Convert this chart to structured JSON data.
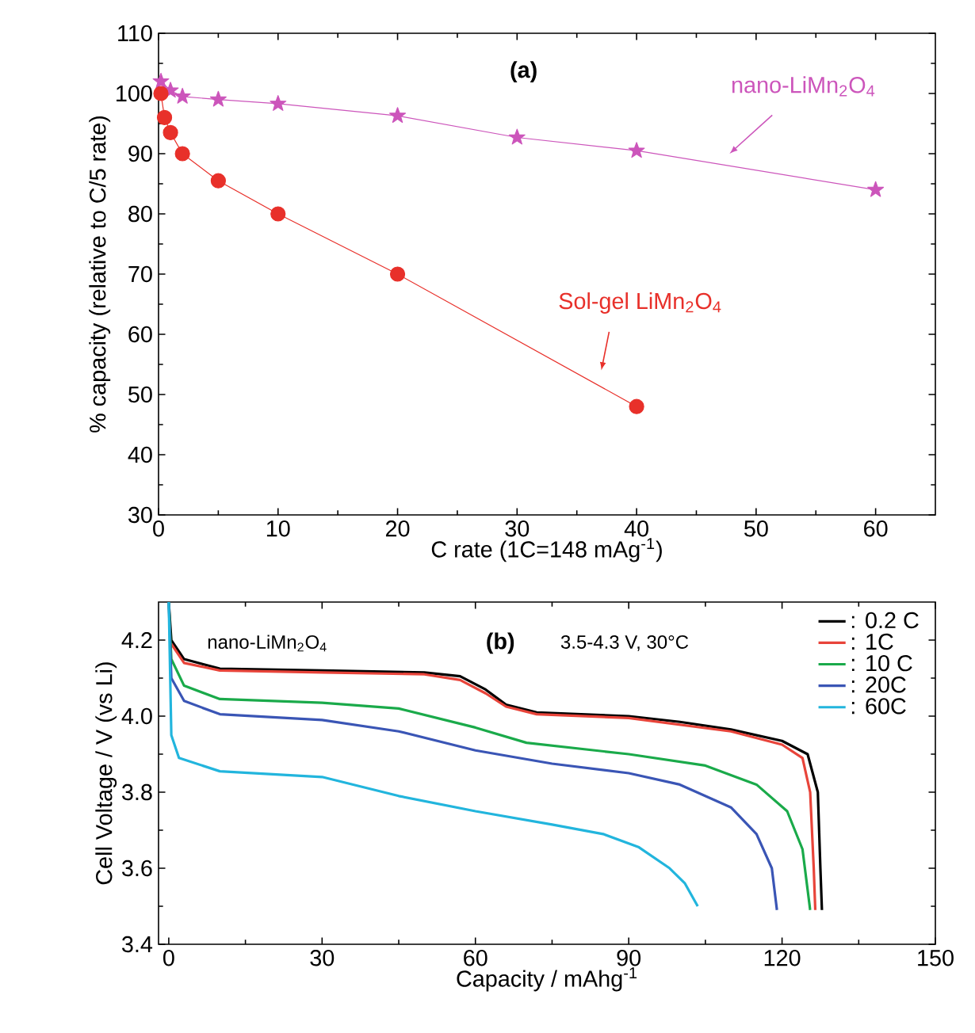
{
  "chart_data": [
    {
      "type": "line",
      "xlabel": "C rate (1C=148 mAg$^{-1}$)",
      "ylabel": "% capacity (relative to C/5 rate)",
      "annotations": [
        "(a)"
      ],
      "xlim": [
        0,
        65
      ],
      "ylim": [
        30,
        110
      ],
      "xticks": [
        0,
        10,
        20,
        30,
        40,
        50,
        60
      ],
      "yticks": [
        30,
        40,
        50,
        60,
        70,
        80,
        90,
        100,
        110
      ],
      "grid": false,
      "series": [
        {
          "name": "nano-LiMn$_{2}$O$_{4}$",
          "color": "#cc55bb",
          "marker": "star",
          "x": [
            0.2,
            1,
            2,
            5,
            10,
            20,
            30,
            40,
            60
          ],
          "values": [
            102,
            100.5,
            99.5,
            99,
            98.3,
            96.3,
            92.7,
            90.5,
            84
          ]
        },
        {
          "name": "Sol-gel LiMn$_{2}$O$_{4}$",
          "color": "#e8302a",
          "marker": "circle",
          "x": [
            0.2,
            0.5,
            1,
            2,
            5,
            10,
            20,
            40
          ],
          "values": [
            100,
            96,
            93.5,
            90,
            85.5,
            80,
            70,
            48
          ]
        }
      ]
    },
    {
      "type": "line",
      "xlabel": "Capacity / mAhg$^{-1}$",
      "ylabel": "Cell Voltage / V (vs Li)",
      "annotations": [
        "(b)",
        "nano-LiMn$_{2}$O$_{4}$",
        "3.5-4.3 V, 30°C"
      ],
      "xlim": [
        -2,
        150
      ],
      "ylim": [
        3.4,
        4.3
      ],
      "xticks": [
        0,
        30,
        60,
        90,
        120,
        150
      ],
      "yticks": [
        {
          "value": 3.4,
          "label": "3.4"
        },
        {
          "value": 3.6,
          "label": "3.6"
        },
        {
          "value": 3.8,
          "label": "3.8"
        },
        {
          "value": 4.0,
          "label": "4.0"
        },
        {
          "value": 4.2,
          "label": "4.2"
        }
      ],
      "grid": false,
      "legend": "top right",
      "marker": "none",
      "series": [
        {
          "name": ": 0.2 C",
          "color": "#000000",
          "x": [
            0,
            0.5,
            3,
            10,
            30,
            50,
            57,
            62,
            66,
            72,
            90,
            100,
            110,
            120,
            125,
            127,
            127.5,
            127.8
          ],
          "values": [
            4.3,
            4.2,
            4.15,
            4.125,
            4.12,
            4.115,
            4.105,
            4.07,
            4.03,
            4.01,
            4.0,
            3.985,
            3.965,
            3.935,
            3.9,
            3.8,
            3.6,
            3.49
          ]
        },
        {
          "name": ": 1C",
          "color": "#e8443a",
          "x": [
            0.5,
            3,
            10,
            30,
            50,
            57,
            62,
            66,
            72,
            90,
            110,
            120,
            124,
            125.5,
            126.2,
            126.5
          ],
          "values": [
            4.19,
            4.14,
            4.12,
            4.115,
            4.11,
            4.095,
            4.06,
            4.025,
            4.005,
            3.995,
            3.96,
            3.925,
            3.89,
            3.8,
            3.6,
            3.49
          ]
        },
        {
          "name": ": 10 C",
          "color": "#1aaa4a",
          "x": [
            0,
            0.5,
            3,
            10,
            30,
            45,
            60,
            70,
            90,
            105,
            115,
            121,
            124,
            125.5
          ],
          "values": [
            4.3,
            4.15,
            4.08,
            4.045,
            4.035,
            4.02,
            3.97,
            3.93,
            3.9,
            3.87,
            3.82,
            3.75,
            3.65,
            3.49
          ]
        },
        {
          "name": ": 20C",
          "color": "#3a55b5",
          "x": [
            0,
            0.5,
            3,
            10,
            30,
            45,
            60,
            75,
            90,
            100,
            110,
            115,
            118,
            119
          ],
          "values": [
            4.3,
            4.1,
            4.04,
            4.005,
            3.99,
            3.96,
            3.91,
            3.875,
            3.85,
            3.82,
            3.76,
            3.69,
            3.6,
            3.49
          ]
        },
        {
          "name": ": 60C",
          "color": "#22b5dd",
          "x": [
            0,
            0.5,
            2,
            10,
            30,
            45,
            60,
            75,
            85,
            92,
            98,
            101,
            103.5
          ],
          "values": [
            4.3,
            3.95,
            3.89,
            3.855,
            3.84,
            3.79,
            3.75,
            3.715,
            3.69,
            3.655,
            3.6,
            3.56,
            3.5
          ]
        }
      ]
    }
  ]
}
